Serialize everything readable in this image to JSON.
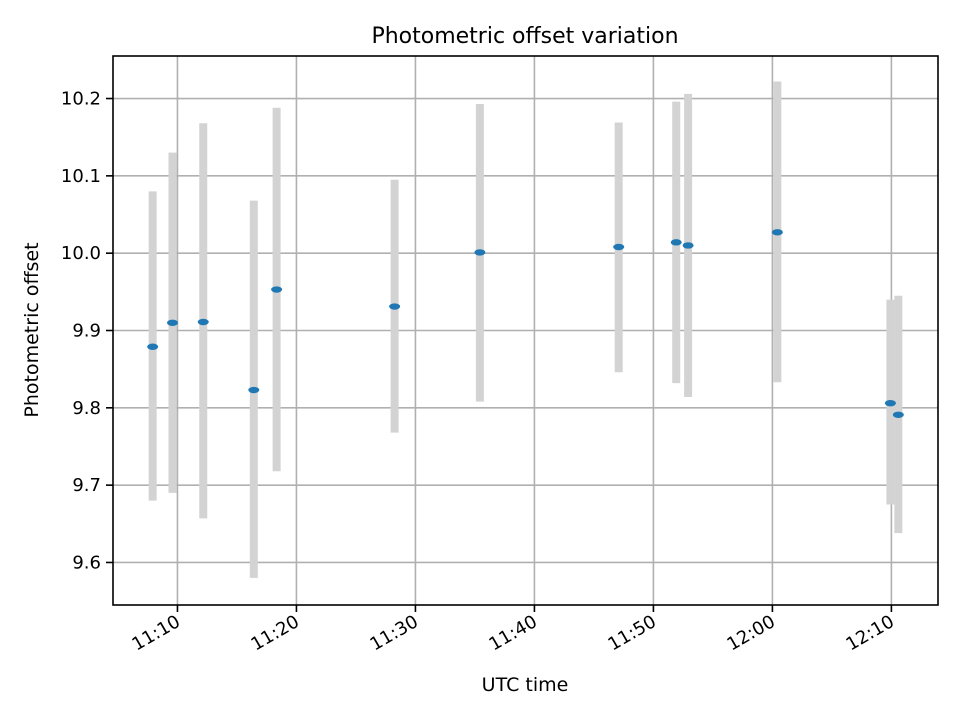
{
  "chart_data": {
    "type": "scatter",
    "title": "Photometric offset variation",
    "xlabel": "UTC time",
    "ylabel": "Photometric offset",
    "x_ticks": [
      "11:10",
      "11:20",
      "11:30",
      "11:40",
      "11:50",
      "12:00",
      "12:10"
    ],
    "y_ticks": [
      "9.6",
      "9.7",
      "9.8",
      "9.9",
      "10.0",
      "10.1",
      "10.2"
    ],
    "xlim": [
      "11:04:35",
      "12:13:55"
    ],
    "ylim": [
      9.545,
      10.255
    ],
    "grid": true,
    "errorbar_color": "#d3d3d3",
    "marker_color": "#1f77b4",
    "points": [
      {
        "x": "11:07:55",
        "y": 9.879,
        "ylow": 9.68,
        "yhigh": 10.08
      },
      {
        "x": "11:09:35",
        "y": 9.91,
        "ylow": 9.69,
        "yhigh": 10.13
      },
      {
        "x": "11:12:10",
        "y": 9.911,
        "ylow": 9.657,
        "yhigh": 10.168
      },
      {
        "x": "11:16:25",
        "y": 9.823,
        "ylow": 9.58,
        "yhigh": 10.068
      },
      {
        "x": "11:18:20",
        "y": 9.953,
        "ylow": 9.718,
        "yhigh": 10.188
      },
      {
        "x": "11:28:15",
        "y": 9.931,
        "ylow": 9.768,
        "yhigh": 10.095
      },
      {
        "x": "11:35:25",
        "y": 10.001,
        "ylow": 9.808,
        "yhigh": 10.193
      },
      {
        "x": "11:47:05",
        "y": 10.008,
        "ylow": 9.846,
        "yhigh": 10.169
      },
      {
        "x": "11:51:55",
        "y": 10.014,
        "ylow": 9.832,
        "yhigh": 10.196
      },
      {
        "x": "11:52:55",
        "y": 10.01,
        "ylow": 9.814,
        "yhigh": 10.206
      },
      {
        "x": "12:00:25",
        "y": 10.027,
        "ylow": 9.833,
        "yhigh": 10.222
      },
      {
        "x": "12:09:55",
        "y": 9.806,
        "ylow": 9.675,
        "yhigh": 9.94
      },
      {
        "x": "12:10:35",
        "y": 9.791,
        "ylow": 9.638,
        "yhigh": 9.945
      }
    ]
  }
}
